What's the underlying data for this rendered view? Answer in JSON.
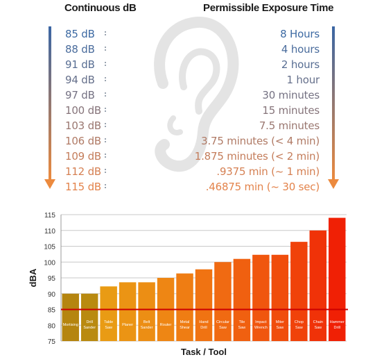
{
  "exposure_table": {
    "left_header": "Continuous dB",
    "right_header": "Permissible Exposure Time",
    "rows": [
      {
        "db": "85 dB",
        "time": "8 Hours",
        "color": "#3d6aa3"
      },
      {
        "db": "88 dB",
        "time": "4 hours",
        "color": "#4a6c9c"
      },
      {
        "db": "91 dB",
        "time": "2 hours",
        "color": "#586e93"
      },
      {
        "db": "94 dB",
        "time": "1 hour",
        "color": "#66708b"
      },
      {
        "db": "97 dB",
        "time": "30 minutes",
        "color": "#757283"
      },
      {
        "db": "100 dB",
        "time": "15 minutes",
        "color": "#86747a"
      },
      {
        "db": "103 dB",
        "time": "7.5 minutes",
        "color": "#9a7770"
      },
      {
        "db": "106 dB",
        "time": "3.75 minutes (< 4 min)",
        "color": "#b07a65"
      },
      {
        "db": "109 dB",
        "time": "1.875 minutes (< 2 min)",
        "color": "#c47d5b"
      },
      {
        "db": "112 dB",
        "time": ".9375 min (~ 1 min)",
        "color": "#d58053"
      },
      {
        "db": "115 dB",
        "time": ".46875 min (~ 30 sec)",
        "color": "#e3834b"
      }
    ],
    "arrow_top_color": "#3a66a4",
    "arrow_bottom_color": "#ec8a3e"
  },
  "chart_data": {
    "type": "bar",
    "xlabel": "Task / Tool",
    "ylabel": "dBA",
    "ylim": [
      75,
      115
    ],
    "yticks": [
      75,
      80,
      85,
      90,
      95,
      100,
      105,
      110,
      115
    ],
    "threshold": 85,
    "threshold_color": "#cc0000",
    "grid": true,
    "categories": [
      [
        "Mortising"
      ],
      [
        "Drill",
        "Sander"
      ],
      [
        "Table",
        "Saw"
      ],
      [
        "Planer"
      ],
      [
        "Belt",
        "Sander"
      ],
      [
        "Router"
      ],
      [
        "Metal",
        "Shear"
      ],
      [
        "Hand",
        "Drill"
      ],
      [
        "Circular",
        "Saw"
      ],
      [
        "Tile",
        "Saw"
      ],
      [
        "Impact",
        "Wrench"
      ],
      [
        "Miter",
        "Saw"
      ],
      [
        "Chop",
        "Saw"
      ],
      [
        "Chain",
        "Saw"
      ],
      [
        "Hammer",
        "Drill"
      ]
    ],
    "values": [
      90,
      90,
      92.3,
      93.6,
      93.6,
      95,
      96.4,
      97.7,
      100,
      101,
      102.3,
      102.3,
      106.4,
      110,
      114
    ],
    "colors": [
      "#b5850f",
      "#b98a10",
      "#e99b14",
      "#eb9414",
      "#ec8e14",
      "#ee8614",
      "#ef7d13",
      "#f07312",
      "#f06a12",
      "#f06010",
      "#f0560e",
      "#f04d0c",
      "#f0420a",
      "#f03208",
      "#f02005"
    ]
  }
}
